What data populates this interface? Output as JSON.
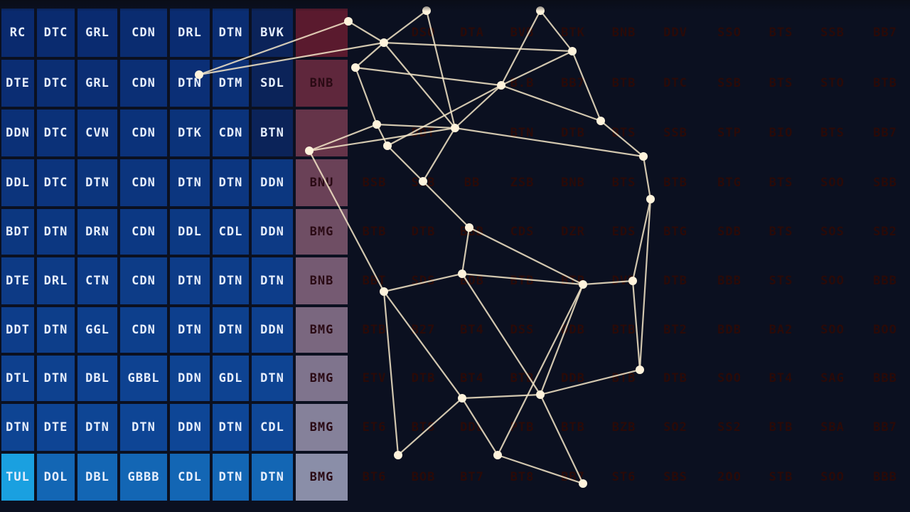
{
  "grid": {
    "rows": [
      [
        "RC",
        "DTC",
        "GRL",
        "CDN",
        "DRL",
        "DTN",
        "BVK",
        "",
        "",
        "DSO",
        "DTA",
        "BVB",
        "BTK",
        "BNB",
        "DDV",
        "SSO",
        "BTS",
        "SSB",
        "BB7"
      ],
      [
        "DTE",
        "DTC",
        "GRL",
        "CDN",
        "DTN",
        "DTM",
        "SDL",
        "BNB",
        "",
        "",
        "",
        "B.B",
        "BB7",
        "BTB",
        "DTC",
        "SSB",
        "BTS",
        "STO",
        "BTB"
      ],
      [
        "DDN",
        "DTC",
        "CVN",
        "CDN",
        "DTK",
        "CDN",
        "BTN",
        "",
        "",
        "DDT",
        "",
        "BTN",
        "DTB",
        "BTS",
        "SSB",
        "STP",
        "BIO",
        "BTS",
        "BB7"
      ],
      [
        "DDL",
        "DTC",
        "DTN",
        "CDN",
        "DTN",
        "DTN",
        "DDN",
        "BNU",
        "BSB",
        "SRB",
        "BB",
        "ZSB",
        "BNB",
        "BTS",
        "BTB",
        "BTG",
        "BTS",
        "SOO",
        "SBB"
      ],
      [
        "BDT",
        "DTN",
        "DRN",
        "CDN",
        "DDL",
        "CDL",
        "DDN",
        "BMG",
        "BTB",
        "DTB",
        "BBB",
        "CDS",
        "DZR",
        "EDS",
        "BTG",
        "SDB",
        "BTS",
        "SOS",
        "SB2"
      ],
      [
        "DTE",
        "DRL",
        "CTN",
        "CDN",
        "DTN",
        "DTN",
        "DTN",
        "BNB",
        "BBT",
        "SDS",
        "BDB",
        "BTB",
        "BTP",
        "DVB",
        "DTB",
        "BBB",
        "STS",
        "SOO",
        "BBB"
      ],
      [
        "DDT",
        "DTN",
        "GGL",
        "CDN",
        "DTN",
        "DTN",
        "DDN",
        "BMG",
        "BTB",
        "B27",
        "BT4",
        "DSS",
        "DDB",
        "BTB",
        "BT2",
        "BDB",
        "BA2",
        "SOO",
        "BOO"
      ],
      [
        "DTL",
        "DTN",
        "DBL",
        "GBBL",
        "DDN",
        "GDL",
        "DTN",
        "BMG",
        "ETV",
        "DTB",
        "BT4",
        "BTB",
        "DDB",
        "BTB",
        "DTB",
        "SOO",
        "BT4",
        "SAG",
        "BBB"
      ],
      [
        "DTN",
        "DTE",
        "DTN",
        "DTN",
        "DDN",
        "DTN",
        "CDL",
        "BMG",
        "ET6",
        "BTS",
        "DDL",
        "PTB",
        "BTB",
        "BZB",
        "SO2",
        "SS2",
        "BTB",
        "SBA",
        "BB7"
      ],
      [
        "TUL",
        "DOL",
        "DBL",
        "GBBB",
        "CDL",
        "DTN",
        "DTN",
        "BMG",
        "BT6",
        "BOB",
        "BT7",
        "BT8",
        "BB7",
        "ST6",
        "SBS",
        "2OO",
        "STB",
        "SOO",
        "BBB"
      ]
    ]
  },
  "colors": {
    "cool_dark": "#0a2a6e",
    "cool_mid": "#0f4a9c",
    "cool_light": "#1aa0e0",
    "warm_red": "#e21b12",
    "warm_orange": "#f7631f",
    "warm_pale": "#f8c8b8",
    "warm_dark": "#c50d10",
    "grid_line": "#0b1020",
    "network_line": "#f4e6c8"
  }
}
